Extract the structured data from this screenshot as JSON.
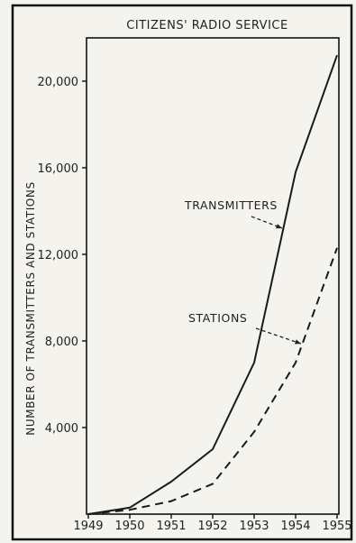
{
  "chart_data": {
    "type": "line",
    "title": "CITIZENS' RADIO SERVICE",
    "xlabel": "",
    "ylabel": "NUMBER OF TRANSMITTERS AND STATIONS",
    "x": [
      "1949",
      "1950",
      "1951",
      "1952",
      "1953",
      "1954",
      "1955"
    ],
    "x_ticks": [
      "1949",
      "1950",
      "1951",
      "1952",
      "1953",
      "1954",
      "1955"
    ],
    "y_ticks": [
      "4,000",
      "8,000",
      "12,000",
      "16,000",
      "20,000"
    ],
    "ylim": [
      0,
      22000
    ],
    "grid": false,
    "series": [
      {
        "name": "TRANSMITTERS",
        "style": "solid",
        "values": [
          0,
          300,
          1500,
          3000,
          7000,
          15800,
          21200
        ]
      },
      {
        "name": "STATIONS",
        "style": "dashed",
        "values": [
          0,
          200,
          600,
          1400,
          3800,
          7000,
          12300
        ]
      }
    ],
    "annotations": [
      "TRANSMITTERS",
      "STATIONS"
    ],
    "colors": {
      "line": "#1a1a1a",
      "frame": "#111111",
      "background": "#f4f3ee"
    }
  }
}
